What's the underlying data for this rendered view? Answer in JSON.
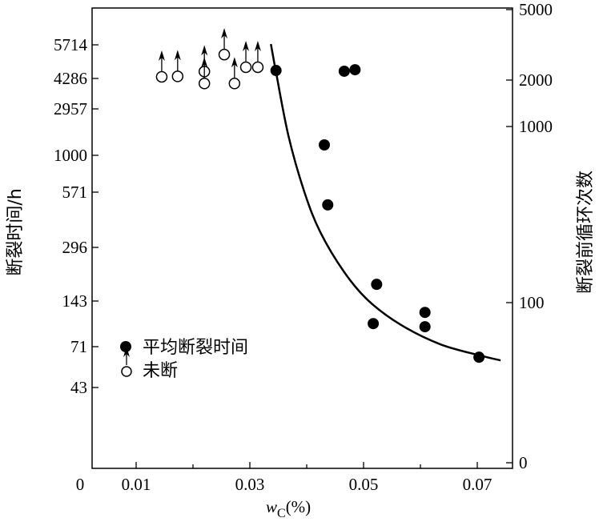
{
  "chart_data": {
    "type": "scatter",
    "title": "",
    "xlabel_main": "w",
    "xlabel_sub": "C",
    "xlabel_unit": "(%)",
    "ylabel_left": "断裂时间/h",
    "ylabel_right": "断裂前循环次数",
    "x_ticks": [
      "0",
      "0.01",
      "0.03",
      "0.05",
      "0.07"
    ],
    "x_tick_values": [
      0,
      0.01,
      0.03,
      0.05,
      0.07
    ],
    "xlim": [
      0.0023,
      0.0763
    ],
    "left_ticks": [
      "5714",
      "4286",
      "2957",
      "1000",
      "571",
      "296",
      "143",
      "71",
      "43"
    ],
    "right_ticks": [
      "5000",
      "2000",
      "1000",
      "100",
      "0"
    ],
    "yscale_right": "log",
    "legend": {
      "placement": "lower-left",
      "items": [
        "平均断裂时间",
        "未断"
      ]
    },
    "series": [
      {
        "name": "平均断裂时间",
        "marker": "filled-circle",
        "x": [
          0.0346,
          0.0431,
          0.0437,
          0.0466,
          0.0485,
          0.0523,
          0.0517,
          0.0608,
          0.0608,
          0.0703
        ],
        "cycles": [
          2080,
          786,
          359,
          2060,
          2100,
          127,
          76,
          88,
          73,
          49
        ]
      },
      {
        "name": "未断",
        "marker": "open-circle-with-arrow",
        "x": [
          0.0145,
          0.0173,
          0.022,
          0.022,
          0.0255,
          0.0273,
          0.0293,
          0.0314
        ],
        "cycles": [
          1914,
          1925,
          2050,
          1755,
          2560,
          1755,
          2170,
          2170
        ]
      },
      {
        "name": "fit-curve",
        "marker": "line",
        "x": [
          0.0337,
          0.0346,
          0.0368,
          0.0396,
          0.0424,
          0.0466,
          0.0508,
          0.0565,
          0.0635,
          0.0706,
          0.0741
        ],
        "cycles": [
          2938,
          2037,
          882,
          424,
          251,
          149,
          103,
          75,
          58,
          50,
          47
        ]
      }
    ]
  }
}
